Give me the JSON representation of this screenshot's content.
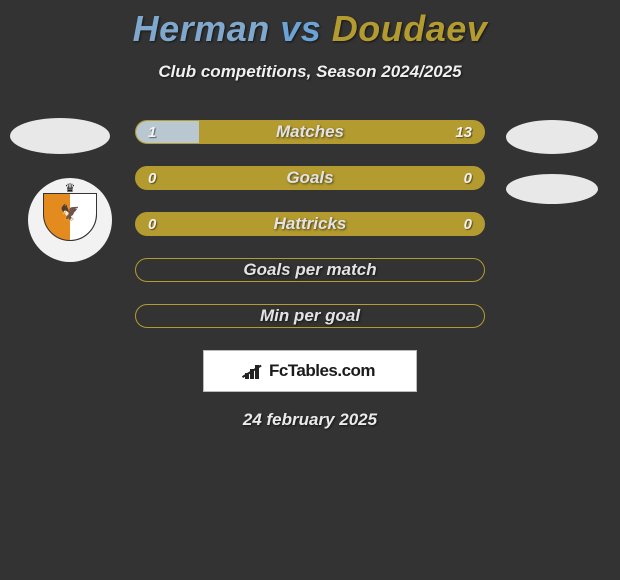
{
  "title_left": "Herman",
  "title_vs": "vs",
  "title_right": "Doudaev",
  "title_color_left": "#7fa8cc",
  "title_color_vs": "#6ba3d6",
  "title_color_right": "#b49b2f",
  "subtitle": "Club competitions, Season 2024/2025",
  "stats": {
    "bar_bg": "#b49b2f",
    "fill_color": "#b8c7d0",
    "rows": [
      {
        "label": "Matches",
        "left": "1",
        "right": "13",
        "left_pct": 18,
        "right_pct": 0
      },
      {
        "label": "Goals",
        "left": "0",
        "right": "0",
        "left_pct": 0,
        "right_pct": 0
      },
      {
        "label": "Hattricks",
        "left": "0",
        "right": "0",
        "left_pct": 0,
        "right_pct": 0
      },
      {
        "label": "Goals per match",
        "left": "",
        "right": "",
        "left_pct": 0,
        "right_pct": 0,
        "empty": true
      },
      {
        "label": "Min per goal",
        "left": "",
        "right": "",
        "left_pct": 0,
        "right_pct": 0,
        "empty": true
      }
    ]
  },
  "branding": {
    "text": "FcTables.com"
  },
  "date": "24 february 2025"
}
